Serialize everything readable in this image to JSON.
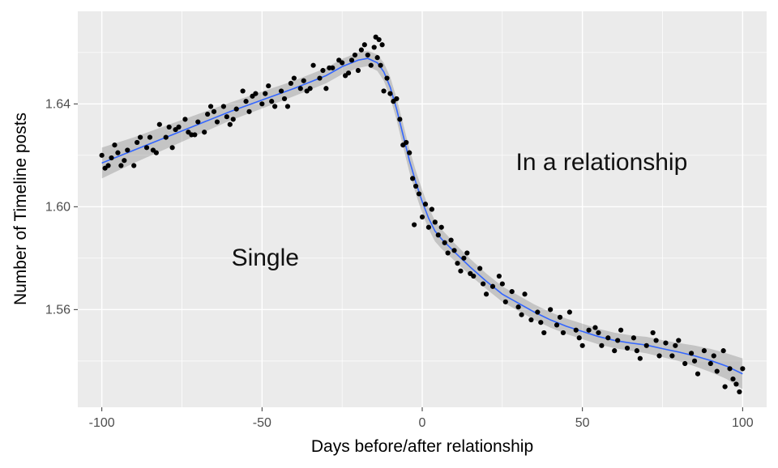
{
  "figure": {
    "background": "#FFFFFF",
    "panel_background": "#EBEBEB",
    "grid_color": "#FFFFFF",
    "point_color": "#000000",
    "line_color": "#3366FF",
    "band_color": "rgba(80,80,80,0.25)",
    "tick_color": "#333333",
    "tick_label_color": "#4D4D4D",
    "axis_title_color": "#000000"
  },
  "chart_data": {
    "type": "scatter",
    "title": "",
    "xlabel": "Days before/after relationship",
    "ylabel": "Number of Timeline posts",
    "xlim": [
      -107.5,
      107.5
    ],
    "ylim": [
      1.522,
      1.676
    ],
    "grid": true,
    "legend": false,
    "x_ticks": [
      -100,
      -50,
      0,
      50,
      100
    ],
    "x_tick_labels": [
      "-100",
      "-50",
      "0",
      "50",
      "100"
    ],
    "x_minor_ticks": [
      -75,
      -25,
      25,
      75
    ],
    "y_ticks": [
      1.56,
      1.6,
      1.64
    ],
    "y_tick_labels": [
      "1.56",
      "1.60",
      "1.64"
    ],
    "y_minor_ticks": [
      1.54,
      1.58,
      1.62,
      1.66
    ],
    "annotations": [
      {
        "text": "Single",
        "x": -49,
        "y": 1.58
      },
      {
        "text": "In a relationship",
        "x": 56,
        "y": 1.617
      }
    ],
    "smooth_line": [
      [
        -100,
        1.617,
        0.006
      ],
      [
        -90,
        1.622,
        0.005
      ],
      [
        -80,
        1.627,
        0.0045
      ],
      [
        -70,
        1.632,
        0.004
      ],
      [
        -60,
        1.637,
        0.0035
      ],
      [
        -50,
        1.6415,
        0.0033
      ],
      [
        -40,
        1.646,
        0.003
      ],
      [
        -30,
        1.651,
        0.003
      ],
      [
        -25,
        1.6545,
        0.003
      ],
      [
        -20,
        1.657,
        0.003
      ],
      [
        -17,
        1.6577,
        0.003
      ],
      [
        -14,
        1.656,
        0.0032
      ],
      [
        -12,
        1.6525,
        0.0035
      ],
      [
        -10,
        1.6465,
        0.004
      ],
      [
        -8,
        1.638,
        0.0042
      ],
      [
        -6,
        1.628,
        0.0045
      ],
      [
        -4,
        1.618,
        0.0045
      ],
      [
        -2,
        1.6095,
        0.0045
      ],
      [
        0,
        1.602,
        0.0045
      ],
      [
        2,
        1.5955,
        0.0042
      ],
      [
        4,
        1.5905,
        0.004
      ],
      [
        6,
        1.5875,
        0.0038
      ],
      [
        8,
        1.585,
        0.0036
      ],
      [
        10,
        1.5825,
        0.0034
      ],
      [
        15,
        1.5765,
        0.0032
      ],
      [
        20,
        1.571,
        0.003
      ],
      [
        25,
        1.566,
        0.003
      ],
      [
        30,
        1.5625,
        0.003
      ],
      [
        35,
        1.559,
        0.003
      ],
      [
        40,
        1.556,
        0.003
      ],
      [
        45,
        1.5535,
        0.003
      ],
      [
        50,
        1.5515,
        0.003
      ],
      [
        55,
        1.5495,
        0.003
      ],
      [
        60,
        1.548,
        0.003
      ],
      [
        65,
        1.547,
        0.003
      ],
      [
        70,
        1.5462,
        0.0032
      ],
      [
        75,
        1.5448,
        0.0033
      ],
      [
        80,
        1.5435,
        0.0035
      ],
      [
        85,
        1.542,
        0.004
      ],
      [
        90,
        1.5402,
        0.0045
      ],
      [
        95,
        1.538,
        0.005
      ],
      [
        100,
        1.535,
        0.006
      ]
    ],
    "points": [
      [
        -100,
        1.62
      ],
      [
        -99,
        1.615
      ],
      [
        -98,
        1.616
      ],
      [
        -97,
        1.619
      ],
      [
        -96,
        1.624
      ],
      [
        -95,
        1.621
      ],
      [
        -94,
        1.616
      ],
      [
        -93,
        1.618
      ],
      [
        -92,
        1.622
      ],
      [
        -90,
        1.616
      ],
      [
        -89,
        1.625
      ],
      [
        -88,
        1.627
      ],
      [
        -86,
        1.623
      ],
      [
        -85,
        1.627
      ],
      [
        -84,
        1.622
      ],
      [
        -83,
        1.621
      ],
      [
        -82,
        1.632
      ],
      [
        -80,
        1.627
      ],
      [
        -79,
        1.631
      ],
      [
        -78,
        1.623
      ],
      [
        -77,
        1.63
      ],
      [
        -76,
        1.631
      ],
      [
        -74,
        1.634
      ],
      [
        -73,
        1.629
      ],
      [
        -72,
        1.628
      ],
      [
        -71,
        1.628
      ],
      [
        -70,
        1.633
      ],
      [
        -68,
        1.629
      ],
      [
        -67,
        1.636
      ],
      [
        -66,
        1.639
      ],
      [
        -65,
        1.637
      ],
      [
        -64,
        1.633
      ],
      [
        -62,
        1.639
      ],
      [
        -61,
        1.635
      ],
      [
        -60,
        1.632
      ],
      [
        -59,
        1.634
      ],
      [
        -58,
        1.638
      ],
      [
        -56,
        1.645
      ],
      [
        -55,
        1.641
      ],
      [
        -54,
        1.637
      ],
      [
        -53,
        1.643
      ],
      [
        -52,
        1.644
      ],
      [
        -50,
        1.64
      ],
      [
        -49,
        1.644
      ],
      [
        -48,
        1.647
      ],
      [
        -47,
        1.641
      ],
      [
        -46,
        1.639
      ],
      [
        -44,
        1.645
      ],
      [
        -43,
        1.642
      ],
      [
        -42,
        1.639
      ],
      [
        -41,
        1.648
      ],
      [
        -40,
        1.65
      ],
      [
        -38,
        1.646
      ],
      [
        -37,
        1.649
      ],
      [
        -36,
        1.645
      ],
      [
        -35,
        1.646
      ],
      [
        -34,
        1.655
      ],
      [
        -32,
        1.65
      ],
      [
        -31,
        1.653
      ],
      [
        -30,
        1.646
      ],
      [
        -29,
        1.654
      ],
      [
        -28,
        1.654
      ],
      [
        -26,
        1.657
      ],
      [
        -25,
        1.656
      ],
      [
        -24,
        1.651
      ],
      [
        -23,
        1.652
      ],
      [
        -22,
        1.657
      ],
      [
        -21,
        1.659
      ],
      [
        -20,
        1.653
      ],
      [
        -19,
        1.661
      ],
      [
        -18,
        1.663
      ],
      [
        -17,
        1.659
      ],
      [
        -16,
        1.655
      ],
      [
        -15,
        1.662
      ],
      [
        -14.5,
        1.666
      ],
      [
        -14,
        1.658
      ],
      [
        -13.5,
        1.665
      ],
      [
        -13,
        1.655
      ],
      [
        -12.5,
        1.663
      ],
      [
        -12,
        1.645
      ],
      [
        -11,
        1.65
      ],
      [
        -10,
        1.644
      ],
      [
        -9,
        1.641
      ],
      [
        -8,
        1.642
      ],
      [
        -7,
        1.634
      ],
      [
        -6,
        1.624
      ],
      [
        -5,
        1.625
      ],
      [
        -4,
        1.621
      ],
      [
        -3,
        1.611
      ],
      [
        -2.5,
        1.593
      ],
      [
        -2,
        1.608
      ],
      [
        -1,
        1.605
      ],
      [
        0,
        1.596
      ],
      [
        1,
        1.601
      ],
      [
        2,
        1.592
      ],
      [
        3,
        1.599
      ],
      [
        4,
        1.594
      ],
      [
        5,
        1.589
      ],
      [
        6,
        1.592
      ],
      [
        7,
        1.586
      ],
      [
        8,
        1.582
      ],
      [
        9,
        1.587
      ],
      [
        10,
        1.583
      ],
      [
        11,
        1.578
      ],
      [
        12,
        1.575
      ],
      [
        13,
        1.58
      ],
      [
        14,
        1.582
      ],
      [
        15,
        1.574
      ],
      [
        16,
        1.573
      ],
      [
        18,
        1.576
      ],
      [
        19,
        1.57
      ],
      [
        20,
        1.566
      ],
      [
        22,
        1.569
      ],
      [
        24,
        1.573
      ],
      [
        25,
        1.57
      ],
      [
        26,
        1.563
      ],
      [
        28,
        1.567
      ],
      [
        30,
        1.561
      ],
      [
        31,
        1.558
      ],
      [
        32,
        1.566
      ],
      [
        34,
        1.556
      ],
      [
        36,
        1.559
      ],
      [
        37,
        1.555
      ],
      [
        38,
        1.551
      ],
      [
        40,
        1.56
      ],
      [
        42,
        1.554
      ],
      [
        43,
        1.557
      ],
      [
        44,
        1.551
      ],
      [
        46,
        1.559
      ],
      [
        48,
        1.552
      ],
      [
        49,
        1.549
      ],
      [
        50,
        1.546
      ],
      [
        52,
        1.552
      ],
      [
        54,
        1.553
      ],
      [
        55,
        1.551
      ],
      [
        56,
        1.546
      ],
      [
        58,
        1.549
      ],
      [
        60,
        1.544
      ],
      [
        61,
        1.548
      ],
      [
        62,
        1.552
      ],
      [
        64,
        1.545
      ],
      [
        66,
        1.549
      ],
      [
        67,
        1.544
      ],
      [
        68,
        1.541
      ],
      [
        70,
        1.546
      ],
      [
        72,
        1.551
      ],
      [
        73,
        1.548
      ],
      [
        74,
        1.542
      ],
      [
        76,
        1.547
      ],
      [
        78,
        1.542
      ],
      [
        79,
        1.546
      ],
      [
        80,
        1.548
      ],
      [
        82,
        1.539
      ],
      [
        84,
        1.543
      ],
      [
        85,
        1.54
      ],
      [
        86,
        1.535
      ],
      [
        88,
        1.544
      ],
      [
        90,
        1.539
      ],
      [
        91,
        1.542
      ],
      [
        92,
        1.536
      ],
      [
        94,
        1.544
      ],
      [
        94.5,
        1.53
      ],
      [
        96,
        1.537
      ],
      [
        97,
        1.533
      ],
      [
        98,
        1.531
      ],
      [
        99,
        1.528
      ],
      [
        100,
        1.537
      ]
    ]
  }
}
